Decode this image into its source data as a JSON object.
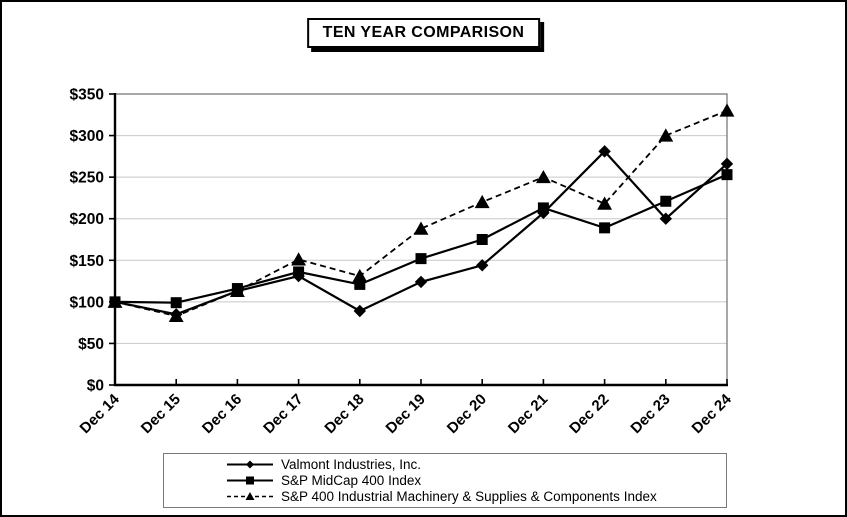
{
  "chart_data": {
    "type": "line",
    "title": "TEN YEAR COMPARISON",
    "categories": [
      "Dec 14",
      "Dec 15",
      "Dec 16",
      "Dec 17",
      "Dec 18",
      "Dec 19",
      "Dec 20",
      "Dec 21",
      "Dec 22",
      "Dec 23",
      "Dec 24"
    ],
    "series": [
      {
        "name": "Valmont Industries, Inc.",
        "marker": "diamond",
        "line": "solid",
        "color": "#000000",
        "values": [
          100,
          85,
          113,
          131,
          89,
          124,
          144,
          207,
          281,
          200,
          266
        ]
      },
      {
        "name": "S&P MidCap 400 Index",
        "marker": "square",
        "line": "solid",
        "color": "#000000",
        "values": [
          100,
          99,
          116,
          136,
          121,
          152,
          175,
          213,
          189,
          221,
          253
        ]
      },
      {
        "name": "S&P 400 Industrial Machinery & Supplies & Components Index",
        "marker": "triangle",
        "line": "dashed",
        "color": "#000000",
        "values": [
          100,
          83,
          113,
          151,
          131,
          188,
          220,
          250,
          218,
          300,
          330
        ]
      }
    ],
    "ylim": [
      0,
      350
    ],
    "y_tick_values": [
      0,
      50,
      100,
      150,
      200,
      250,
      300,
      350
    ],
    "y_tick_labels": [
      "$0",
      "$50",
      "$100",
      "$150",
      "$200",
      "$250",
      "$300",
      "$350"
    ],
    "grid": "horizontal",
    "legend_position": "bottom",
    "colors": {
      "series": "#000000",
      "gridline": "#c8c8c8",
      "plot_border": "#6e6e6e",
      "axis": "#000000",
      "background": "#ffffff"
    }
  }
}
